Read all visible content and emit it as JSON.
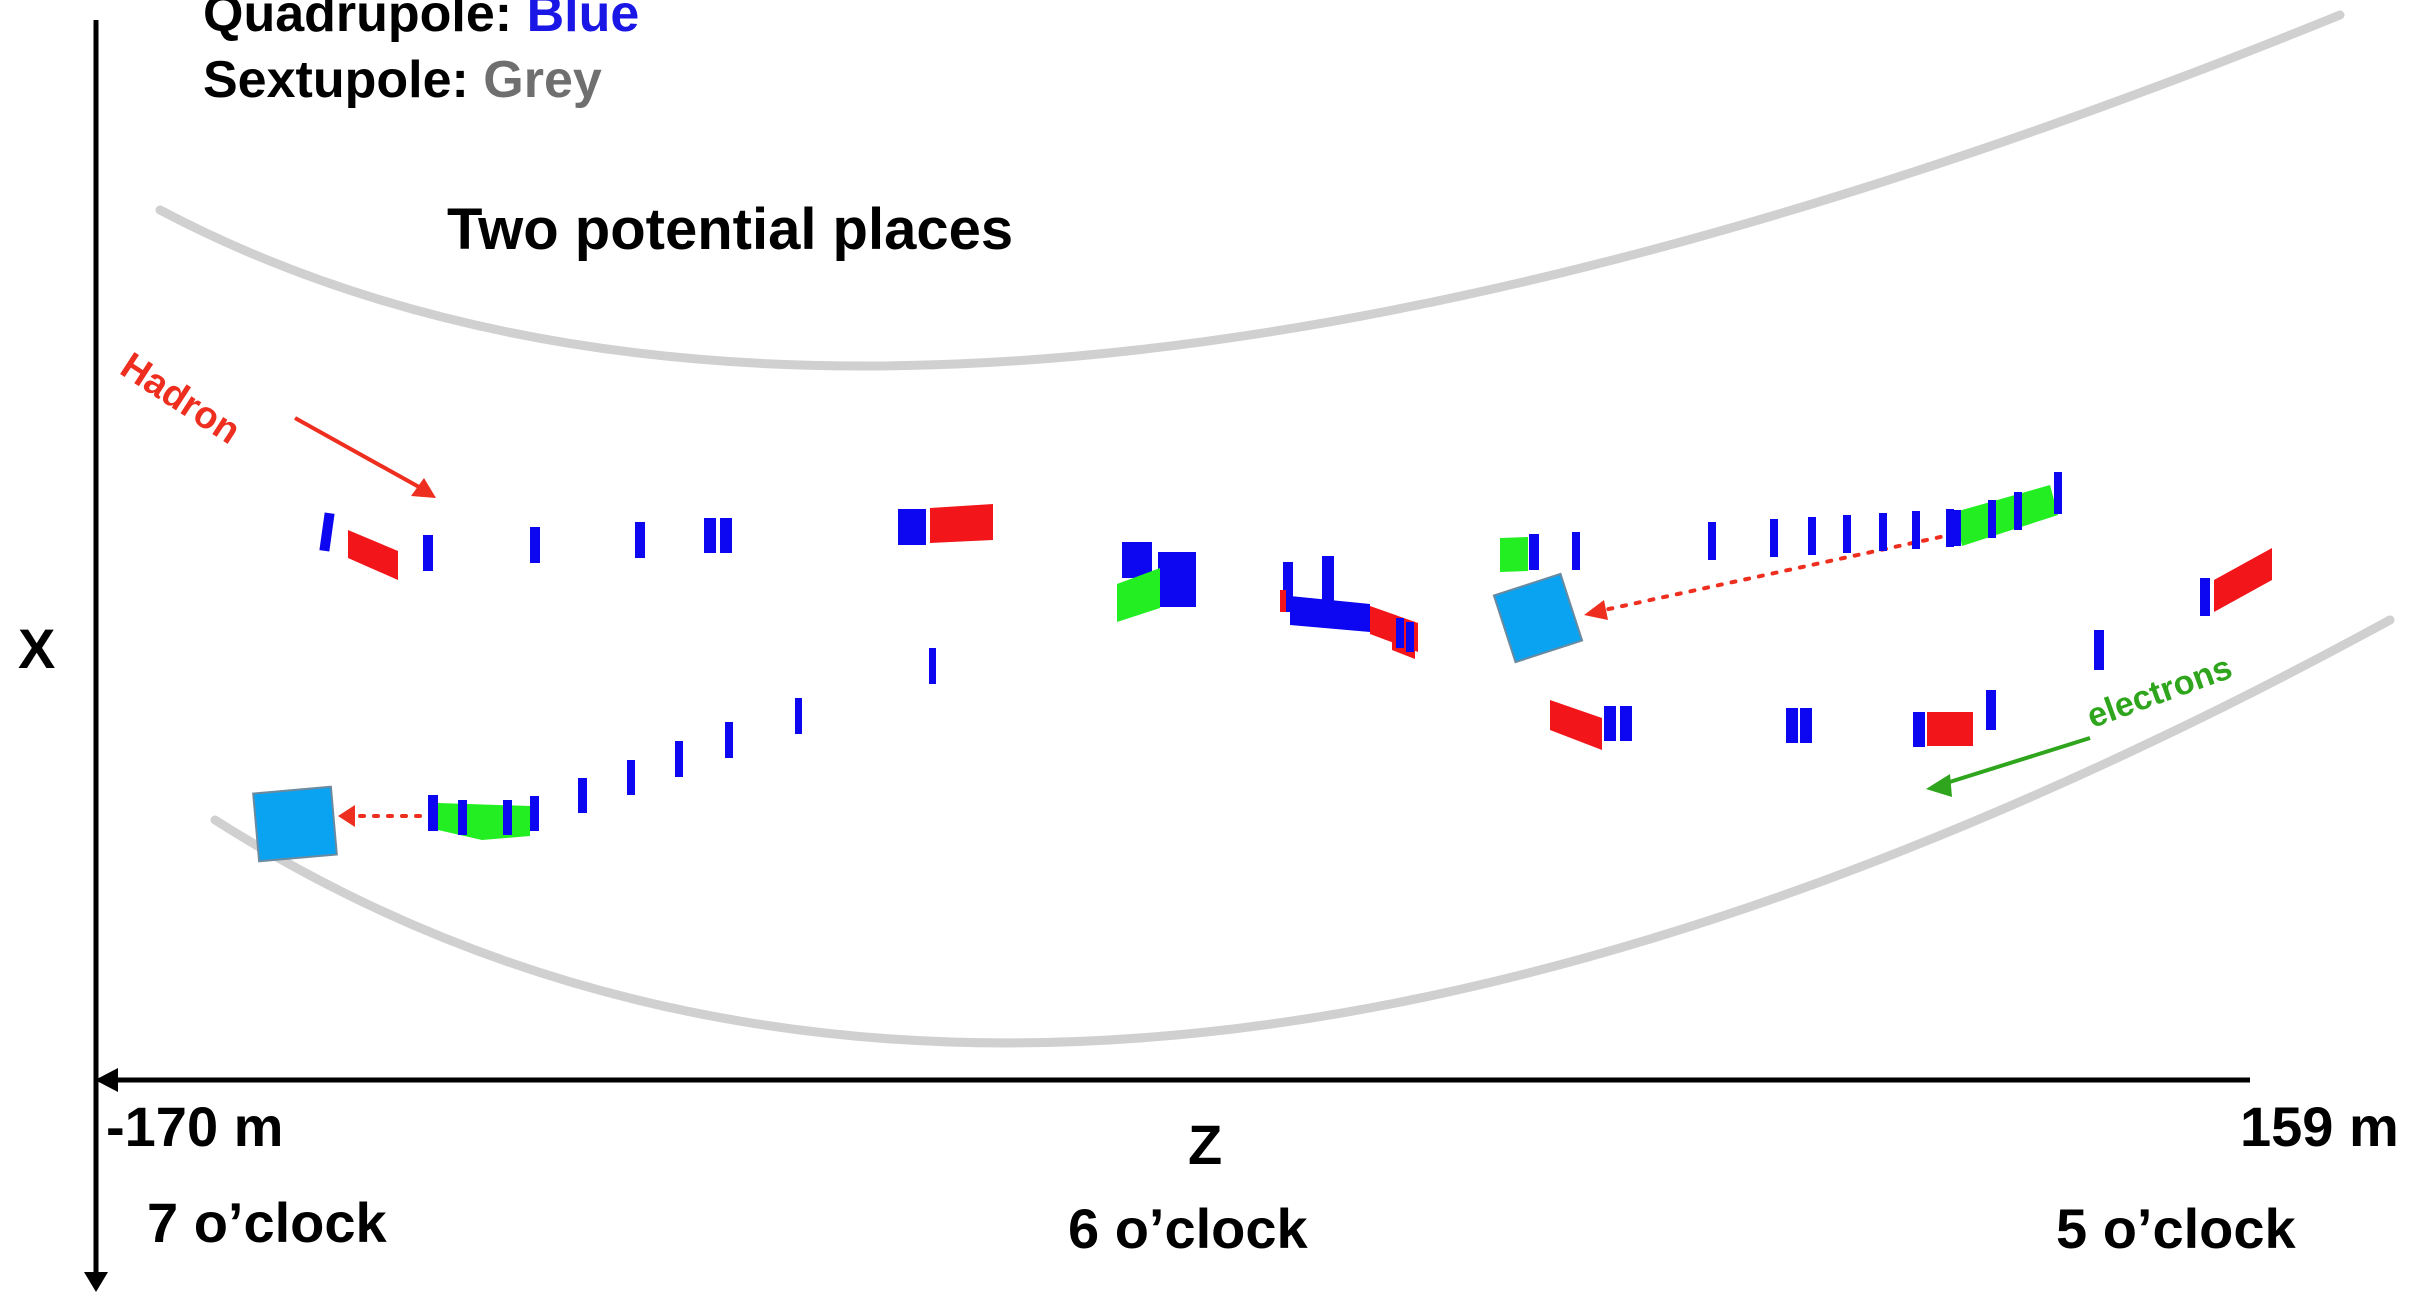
{
  "legend": {
    "quadrupole": {
      "label": "Quadrupole:",
      "value": "Blue",
      "color": "#1a16e6"
    },
    "sextupole": {
      "label": "Sextupole:",
      "value": "Grey",
      "color": "#6f6f6f"
    }
  },
  "annotation_title": "Two potential places",
  "beams": {
    "hadron": {
      "label": "Hadron",
      "color": "#ee2e1f"
    },
    "electrons": {
      "label": "electrons",
      "color": "#2ea51c"
    }
  },
  "axes": {
    "x_label": "X",
    "z_label": "Z",
    "z_min": "-170 m",
    "z_max": "159 m"
  },
  "clock_positions": [
    "7 o’clock",
    "6 o’clock",
    "5 o’clock"
  ],
  "colors": {
    "quadrupole": "#0d06f0",
    "dipole": "#f2151a",
    "corrector": "#22ee22",
    "detector_location": "#0aa3f2",
    "tunnel_wall": "#cfcfcf",
    "pointer_arrow": "#ee2e1f"
  }
}
